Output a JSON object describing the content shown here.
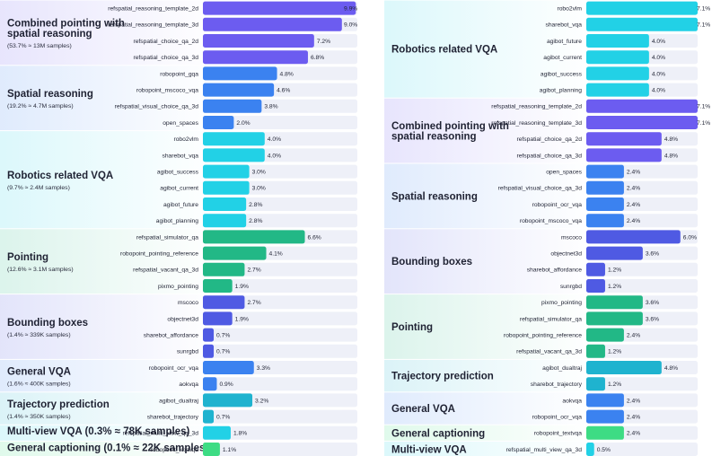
{
  "colors": {
    "purple": "#6c5cf0",
    "cyan": "#22d1e6",
    "blue": "#3b82f0",
    "green": "#22b886",
    "indigo": "#4f5ae3",
    "teal": "#1fb3cf",
    "lightgreen": "#3ddc84",
    "track": "#eef0f8"
  },
  "chart_data": [
    {
      "type": "bar",
      "orientation": "horizontal",
      "xlim": [
        0,
        10
      ],
      "groups": [
        {
          "title": "Combined pointing with spatial reasoning",
          "subtitle": "(53.7% ≈ 13M samples)",
          "color": "purple",
          "items": [
            {
              "label": "refspatial_reasoning_template_2d",
              "value": 9.9,
              "text": "9.9%"
            },
            {
              "label": "refspatial_reasoning_template_3d",
              "value": 9.0,
              "text": "9.0%"
            },
            {
              "label": "refspatial_choice_qa_2d",
              "value": 7.2,
              "text": "7.2%"
            },
            {
              "label": "refspatial_choice_qa_3d",
              "value": 6.8,
              "text": "6.8%"
            }
          ]
        },
        {
          "title": "Spatial reasoning",
          "subtitle": "(19.2% ≈ 4.7M samples)",
          "color": "blue",
          "items": [
            {
              "label": "robopoint_gqa",
              "value": 4.8,
              "text": "4.8%"
            },
            {
              "label": "robopoint_mscoco_vqa",
              "value": 4.6,
              "text": "4.6%"
            },
            {
              "label": "refspatial_visual_choice_qa_3d",
              "value": 3.8,
              "text": "3.8%"
            },
            {
              "label": "open_spaces",
              "value": 2.0,
              "text": "2.0%"
            }
          ]
        },
        {
          "title": "Robotics related VQA",
          "subtitle": "(9.7% ≈ 2.4M samples)",
          "color": "cyan",
          "items": [
            {
              "label": "robo2vlm",
              "value": 4.0,
              "text": "4.0%"
            },
            {
              "label": "sharebot_vqa",
              "value": 4.0,
              "text": "4.0%"
            },
            {
              "label": "agibot_success",
              "value": 3.0,
              "text": "3.0%"
            },
            {
              "label": "agibot_current",
              "value": 3.0,
              "text": "3.0%"
            },
            {
              "label": "agibot_future",
              "value": 2.8,
              "text": "2.8%"
            },
            {
              "label": "agibot_planning",
              "value": 2.8,
              "text": "2.8%"
            }
          ]
        },
        {
          "title": "Pointing",
          "subtitle": "(12.6% ≈ 3.1M samples)",
          "color": "green",
          "items": [
            {
              "label": "refspatial_simulator_qa",
              "value": 6.6,
              "text": "6.6%"
            },
            {
              "label": "robopoint_pointing_reference",
              "value": 4.1,
              "text": "4.1%"
            },
            {
              "label": "refspatial_vacant_qa_3d",
              "value": 2.7,
              "text": "2.7%"
            },
            {
              "label": "pixmo_pointing",
              "value": 1.9,
              "text": "1.9%"
            }
          ]
        },
        {
          "title": "Bounding boxes",
          "subtitle": "(1.4% ≈ 339K samples)",
          "color": "indigo",
          "items": [
            {
              "label": "mscoco",
              "value": 2.7,
              "text": "2.7%"
            },
            {
              "label": "objectnet3d",
              "value": 1.9,
              "text": "1.9%"
            },
            {
              "label": "sharebot_affordance",
              "value": 0.7,
              "text": "0.7%"
            },
            {
              "label": "sunrgbd",
              "value": 0.7,
              "text": "0.7%"
            }
          ]
        },
        {
          "title": "General VQA",
          "subtitle": "(1.6% ≈ 400K samples)",
          "color": "blue",
          "items": [
            {
              "label": "robopoint_ocr_vqa",
              "value": 3.3,
              "text": "3.3%"
            },
            {
              "label": "aokvqa",
              "value": 0.9,
              "text": "0.9%"
            }
          ]
        },
        {
          "title": "Trajectory prediction",
          "subtitle": "(1.4% ≈ 350K samples)",
          "color": "teal",
          "items": [
            {
              "label": "agibot_dualtraj",
              "value": 3.2,
              "text": "3.2%"
            },
            {
              "label": "sharebot_trajectory",
              "value": 0.7,
              "text": "0.7%"
            }
          ]
        },
        {
          "title": "Multi-view VQA (0.3% ≈ 78K samples)",
          "subtitle": "",
          "color": "cyan",
          "items": [
            {
              "label": "refspatial_multi_view_qa_3d",
              "value": 1.8,
              "text": "1.8%"
            }
          ]
        },
        {
          "title": "General captioning (0.1% ≈ 22K samples)",
          "subtitle": "",
          "color": "lightgreen",
          "items": [
            {
              "label": "robopoint_textvqa",
              "value": 1.1,
              "text": "1.1%"
            }
          ]
        }
      ]
    },
    {
      "type": "bar",
      "orientation": "horizontal",
      "xlim": [
        0,
        7.1
      ],
      "groups": [
        {
          "title": "Robotics related VQA",
          "subtitle": "",
          "color": "cyan",
          "items": [
            {
              "label": "robo2vlm",
              "value": 7.1,
              "text": "7.1%"
            },
            {
              "label": "sharebot_vqa",
              "value": 7.1,
              "text": "7.1%"
            },
            {
              "label": "agibot_future",
              "value": 4.0,
              "text": "4.0%"
            },
            {
              "label": "agibot_current",
              "value": 4.0,
              "text": "4.0%"
            },
            {
              "label": "agibot_success",
              "value": 4.0,
              "text": "4.0%"
            },
            {
              "label": "agibot_planning",
              "value": 4.0,
              "text": "4.0%"
            }
          ]
        },
        {
          "title": "Combined pointing with spatial reasoning",
          "subtitle": "",
          "color": "purple",
          "items": [
            {
              "label": "refspatial_reasoning_template_2d",
              "value": 7.1,
              "text": "7.1%"
            },
            {
              "label": "refspatial_reasoning_template_3d",
              "value": 7.1,
              "text": "7.1%"
            },
            {
              "label": "refspatial_choice_qa_2d",
              "value": 4.8,
              "text": "4.8%"
            },
            {
              "label": "refspatial_choice_qa_3d",
              "value": 4.8,
              "text": "4.8%"
            }
          ]
        },
        {
          "title": "Spatial reasoning",
          "subtitle": "",
          "color": "blue",
          "items": [
            {
              "label": "open_spaces",
              "value": 2.4,
              "text": "2.4%"
            },
            {
              "label": "refspatial_visual_choice_qa_3d",
              "value": 2.4,
              "text": "2.4%"
            },
            {
              "label": "robopoint_ocr_vqa",
              "value": 2.4,
              "text": "2.4%"
            },
            {
              "label": "robopoint_mscoco_vqa",
              "value": 2.4,
              "text": "2.4%"
            }
          ]
        },
        {
          "title": "Bounding boxes",
          "subtitle": "",
          "color": "indigo",
          "items": [
            {
              "label": "mscoco",
              "value": 6.0,
              "text": "6.0%"
            },
            {
              "label": "objectnet3d",
              "value": 3.6,
              "text": "3.6%"
            },
            {
              "label": "sharebot_affordance",
              "value": 1.2,
              "text": "1.2%"
            },
            {
              "label": "sunrgbd",
              "value": 1.2,
              "text": "1.2%"
            }
          ]
        },
        {
          "title": "Pointing",
          "subtitle": "",
          "color": "green",
          "items": [
            {
              "label": "pixmo_pointing",
              "value": 3.6,
              "text": "3.6%"
            },
            {
              "label": "refspatial_simulator_qa",
              "value": 3.6,
              "text": "3.6%"
            },
            {
              "label": "robopoint_pointing_reference",
              "value": 2.4,
              "text": "2.4%"
            },
            {
              "label": "refspatial_vacant_qa_3d",
              "value": 1.2,
              "text": "1.2%"
            }
          ]
        },
        {
          "title": "Trajectory prediction",
          "subtitle": "",
          "color": "teal",
          "items": [
            {
              "label": "agibot_dualtraj",
              "value": 4.8,
              "text": "4.8%"
            },
            {
              "label": "sharebot_trajectory",
              "value": 1.2,
              "text": "1.2%"
            }
          ]
        },
        {
          "title": "General VQA",
          "subtitle": "",
          "color": "blue",
          "items": [
            {
              "label": "aokvqa",
              "value": 2.4,
              "text": "2.4%"
            },
            {
              "label": "robopoint_ocr_vqa",
              "value": 2.4,
              "text": "2.4%"
            }
          ]
        },
        {
          "title": "General captioning",
          "subtitle": "",
          "color": "lightgreen",
          "items": [
            {
              "label": "robopoint_textvqa",
              "value": 2.4,
              "text": "2.4%"
            }
          ]
        },
        {
          "title": "Multi-view VQA",
          "subtitle": "",
          "color": "cyan",
          "items": [
            {
              "label": "refspatial_multi_view_qa_3d",
              "value": 0.5,
              "text": "0.5%"
            }
          ]
        }
      ]
    }
  ]
}
